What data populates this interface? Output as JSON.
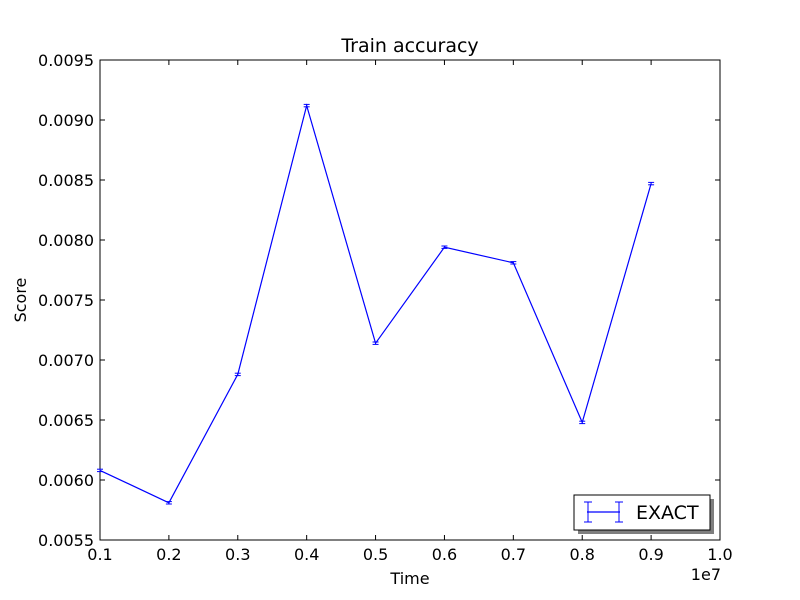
{
  "chart_data": {
    "type": "line",
    "title": "Train accuracy",
    "xlabel": "Time",
    "ylabel": "Score",
    "x_offset_label": "1e7",
    "xlim": [
      0.1,
      1.0
    ],
    "ylim": [
      0.0055,
      0.0095
    ],
    "xticks": [
      "0.1",
      "0.2",
      "0.3",
      "0.4",
      "0.5",
      "0.6",
      "0.7",
      "0.8",
      "0.9",
      "1.0"
    ],
    "yticks": [
      "0.0055",
      "0.0060",
      "0.0065",
      "0.0070",
      "0.0075",
      "0.0080",
      "0.0085",
      "0.0090",
      "0.0095"
    ],
    "grid": false,
    "legend_position": "bottom-right",
    "series": [
      {
        "name": "EXACT",
        "color": "#0000ff",
        "x": [
          0.1,
          0.2,
          0.3,
          0.4,
          0.5,
          0.6,
          0.7,
          0.8,
          0.9
        ],
        "y": [
          0.00608,
          0.00581,
          0.00688,
          0.00912,
          0.00714,
          0.00794,
          0.00781,
          0.00648,
          0.00847
        ],
        "errors": [
          1e-05,
          1e-05,
          1e-05,
          1e-05,
          1e-05,
          1e-05,
          1e-05,
          1e-05,
          1e-05
        ]
      }
    ]
  }
}
